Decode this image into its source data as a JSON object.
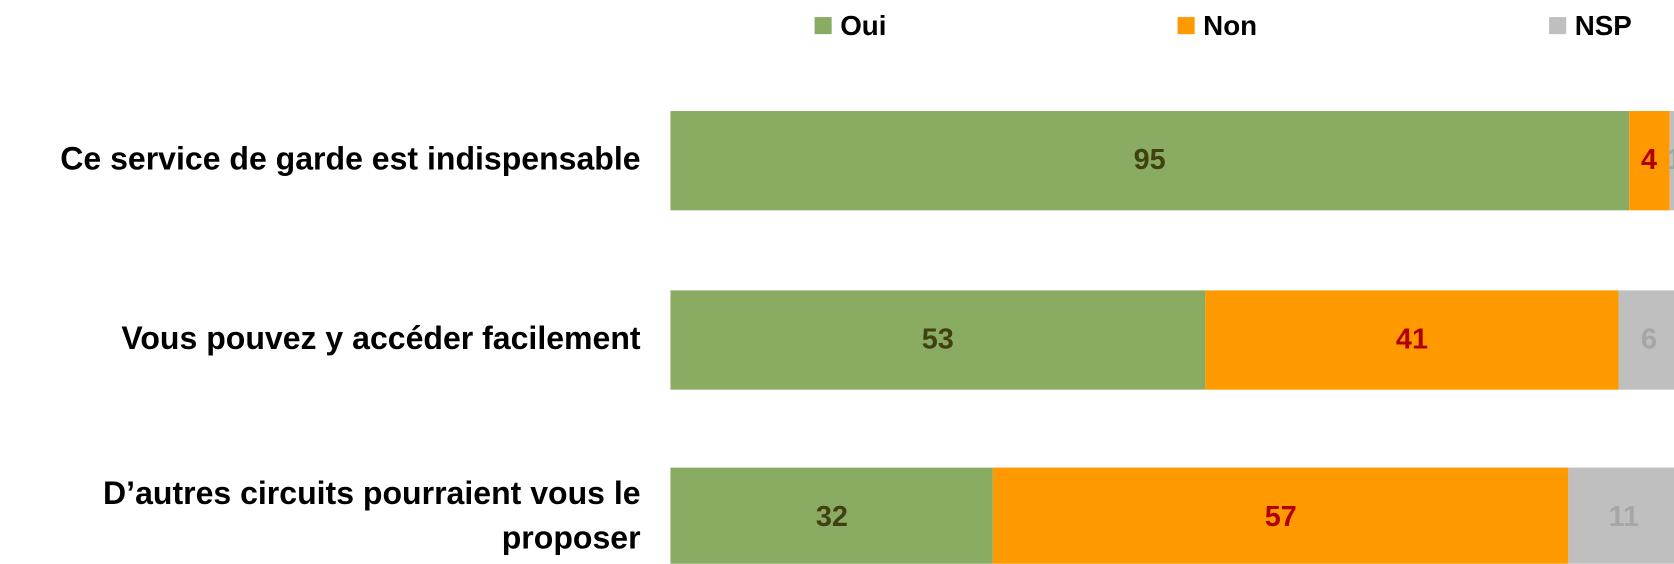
{
  "chart_data": {
    "type": "stacked-bar-horizontal",
    "categories": [
      "Ce service de garde est indispensable",
      "Vous pouvez y accéder facilement",
      "D’autres circuits pourraient vous le proposer"
    ],
    "series": [
      {
        "name": "Oui",
        "color": "#8aac62",
        "label_color": "#3f4210",
        "values": [
          95,
          53,
          32
        ]
      },
      {
        "name": "Non",
        "color": "#ff9900",
        "label_color": "#b00000",
        "values": [
          4,
          41,
          57
        ]
      },
      {
        "name": "NSP",
        "color": "#bfbfbf",
        "label_color": "#a6a6a6",
        "values": [
          1,
          6,
          11
        ]
      }
    ],
    "xlim": [
      0,
      100
    ]
  }
}
